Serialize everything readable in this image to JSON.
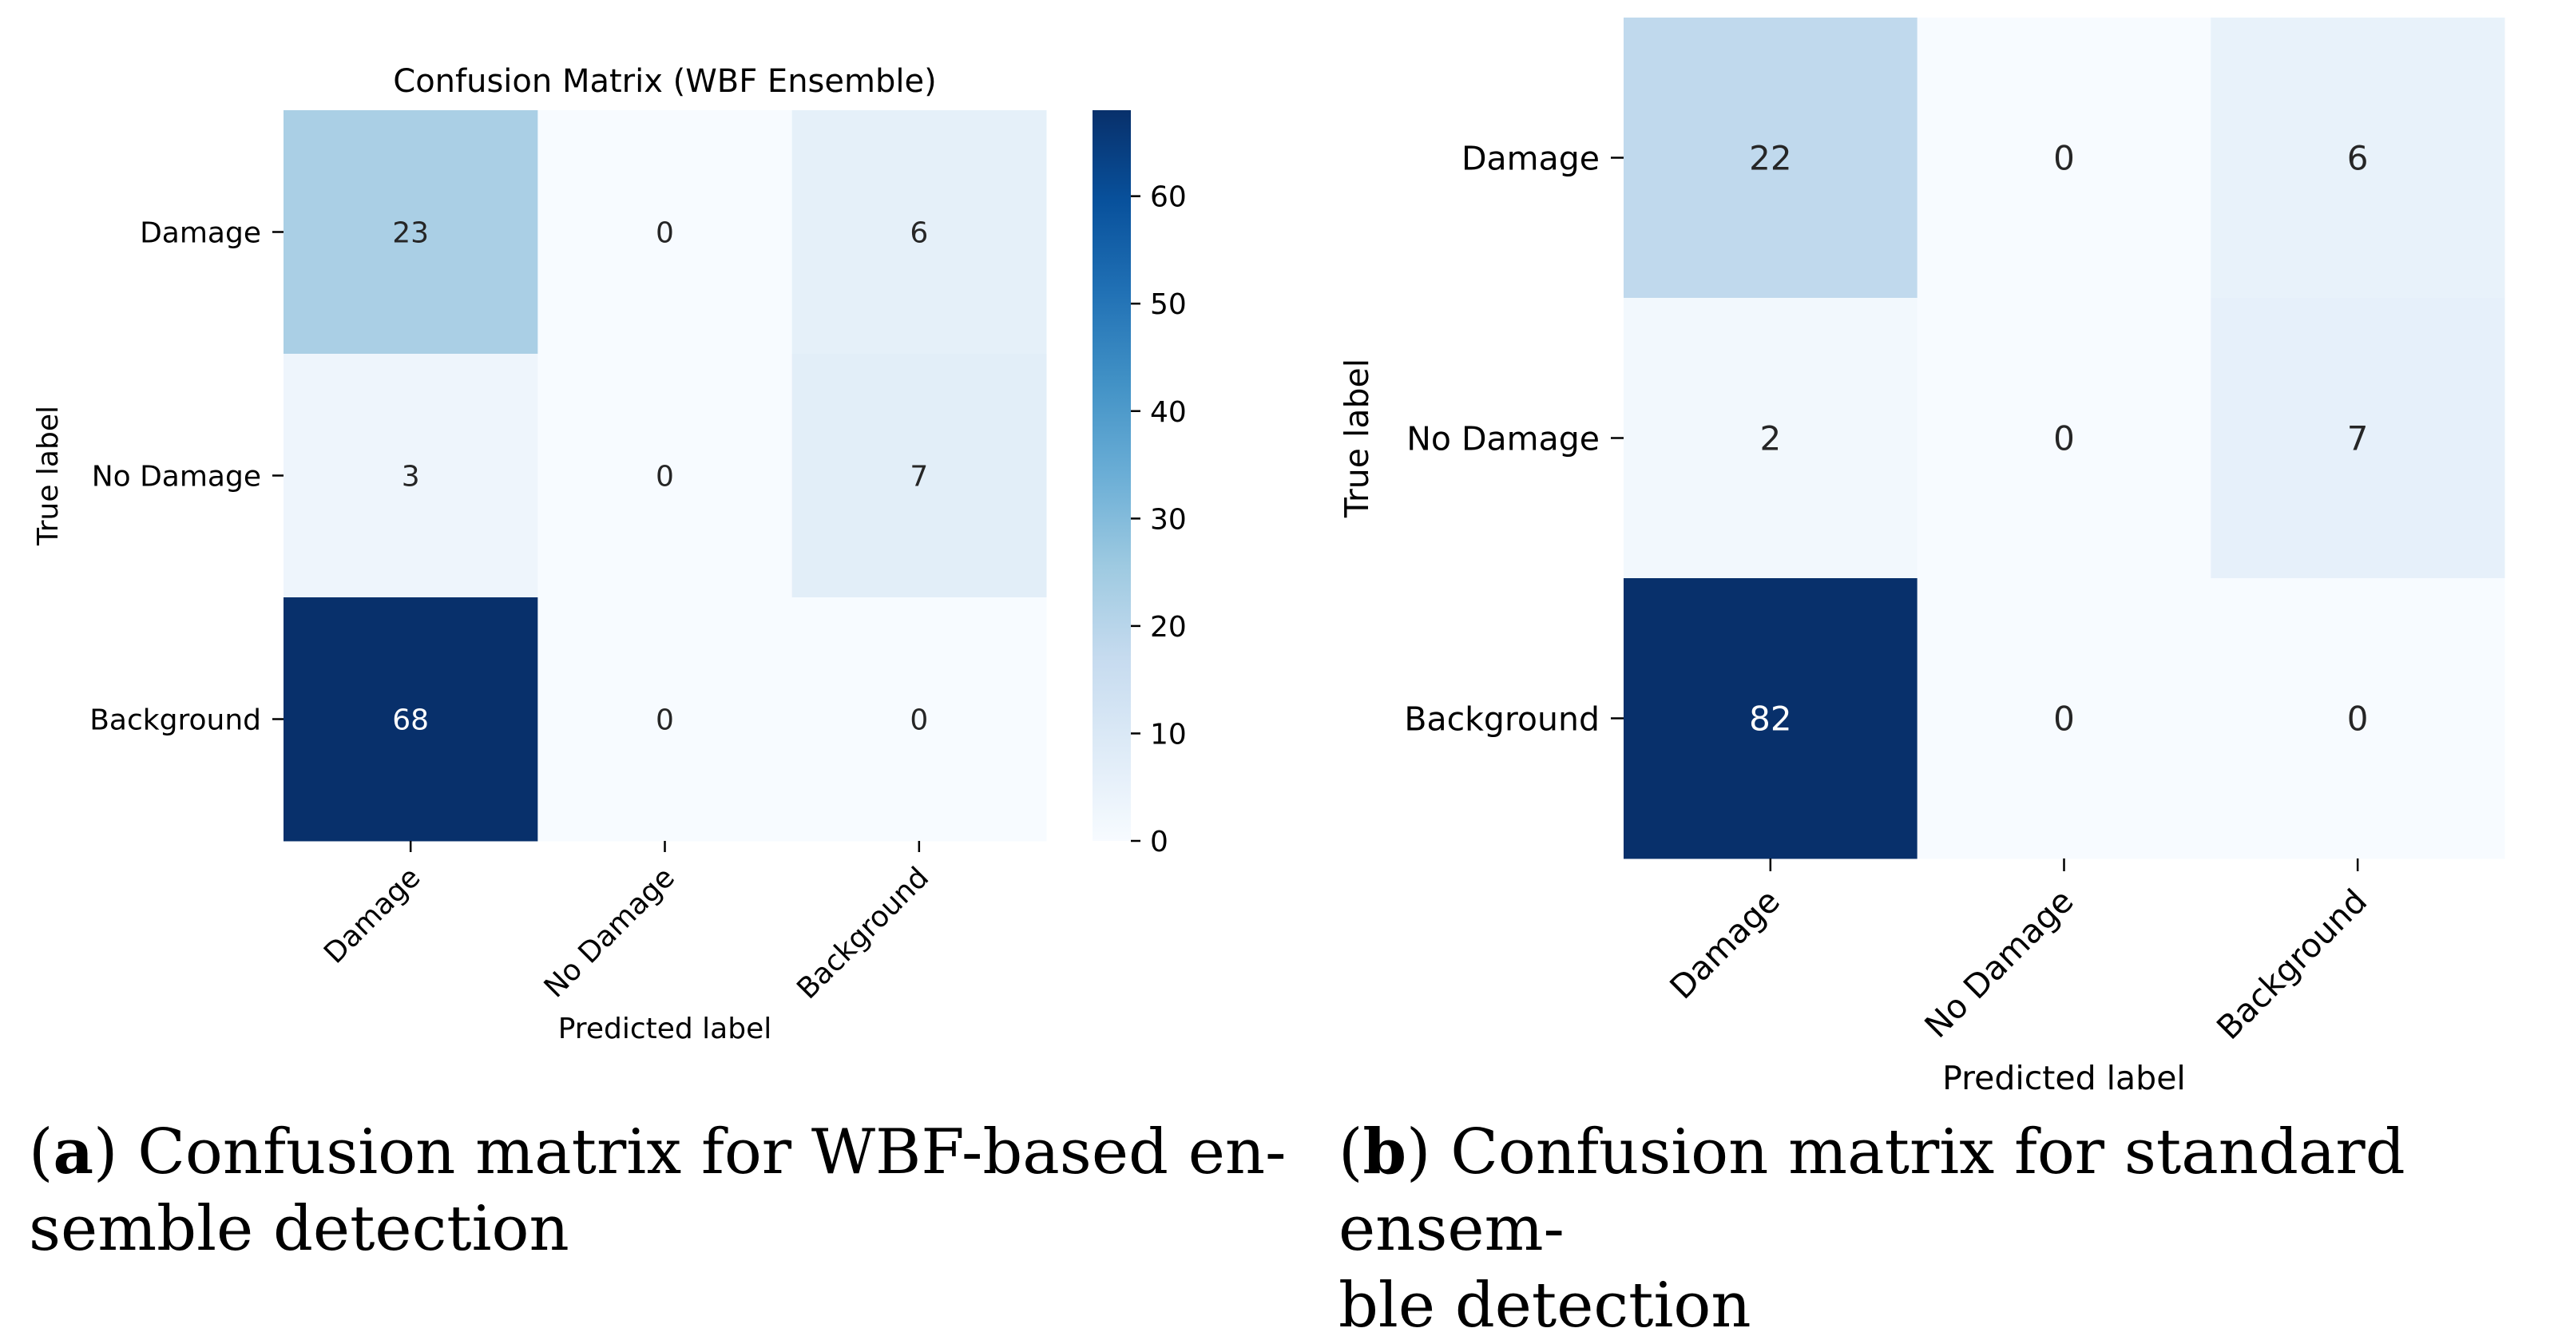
{
  "colors": {
    "cmap_low": "#f7fbff",
    "cmap_high": "#08306b",
    "text_dark": "#262626",
    "text_light": "#ffffff"
  },
  "panels": [
    {
      "caption": {
        "letter": "a",
        "line1": ") Confusion matrix for WBF-based en-",
        "line2": "semble detection"
      }
    },
    {
      "caption": {
        "letter": "b",
        "line1": ") Confusion matrix for standard ensem-",
        "line2": "ble detection"
      }
    }
  ],
  "chart_data": [
    {
      "type": "heatmap",
      "title": "Confusion Matrix (WBF Ensemble)",
      "xlabel": "Predicted label",
      "ylabel": "True label",
      "x_categories": [
        "Damage",
        "No Damage",
        "Background"
      ],
      "y_categories": [
        "Damage",
        "No Damage",
        "Background"
      ],
      "values": [
        [
          23,
          0,
          6
        ],
        [
          3,
          0,
          7
        ],
        [
          68,
          0,
          0
        ]
      ],
      "colormap": "Blues",
      "vmin": 0,
      "vmax": 68,
      "colorbar": true,
      "colorbar_ticks": [
        0,
        10,
        20,
        30,
        40,
        50,
        60
      ]
    },
    {
      "type": "heatmap",
      "title": "",
      "xlabel": "Predicted label",
      "ylabel": "True label",
      "x_categories": [
        "Damage",
        "No Damage",
        "Background"
      ],
      "y_categories": [
        "Damage",
        "No Damage",
        "Background"
      ],
      "values": [
        [
          22,
          0,
          6
        ],
        [
          2,
          0,
          7
        ],
        [
          82,
          0,
          0
        ]
      ],
      "colormap": "Blues",
      "vmin": 0,
      "vmax": 82,
      "colorbar": false
    }
  ]
}
